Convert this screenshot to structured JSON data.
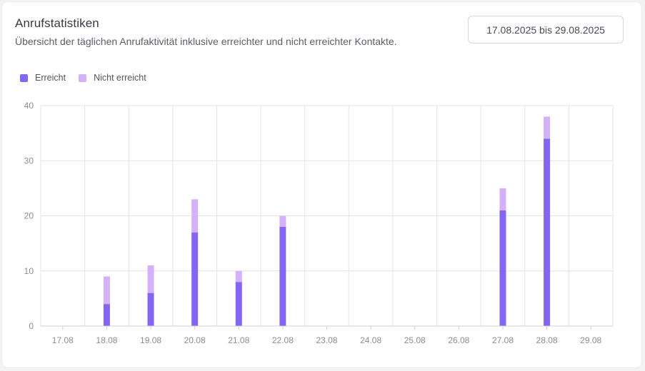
{
  "header": {
    "title": "Anrufstatistiken",
    "subtitle": "Übersicht der täglichen Anrufaktivität inklusive erreichter und nicht erreichter Kontakte.",
    "date_range": "17.08.2025 bis 29.08.2025"
  },
  "colors": {
    "reached": "#8466f2",
    "not_reached": "#d4b1fa",
    "grid": "#e4e4e8",
    "axis": "#cfcfd5"
  },
  "chart_data": {
    "type": "bar",
    "stacked": true,
    "categories": [
      "17.08",
      "18.08",
      "19.08",
      "20.08",
      "21.08",
      "22.08",
      "23.08",
      "24.08",
      "25.08",
      "26.08",
      "27.08",
      "28.08",
      "29.08"
    ],
    "series": [
      {
        "name": "Erreicht",
        "values": [
          0,
          4,
          6,
          17,
          8,
          18,
          0,
          0,
          0,
          0,
          21,
          34,
          0
        ]
      },
      {
        "name": "Nicht erreicht",
        "values": [
          0,
          5,
          5,
          6,
          2,
          2,
          0,
          0,
          0,
          0,
          4,
          4,
          0
        ]
      }
    ],
    "yticks": [
      0,
      10,
      20,
      30,
      40
    ],
    "ylim": [
      0,
      40
    ],
    "grid": true,
    "legend": "top-left"
  }
}
